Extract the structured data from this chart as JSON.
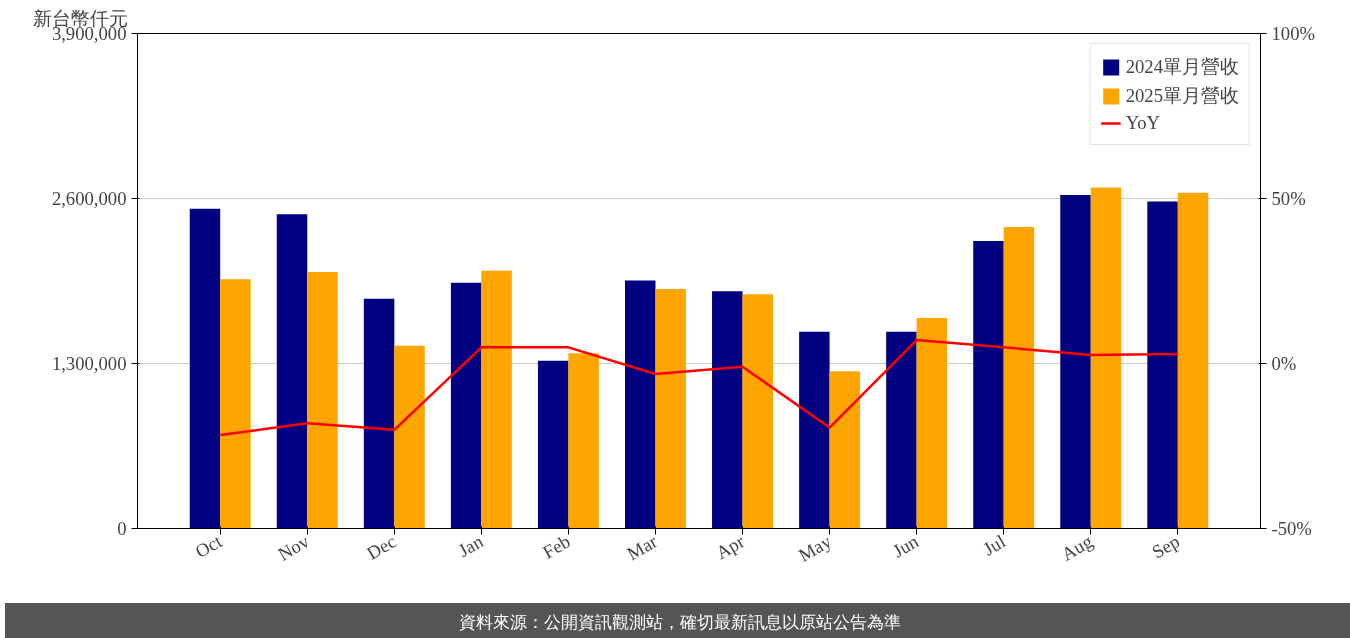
{
  "chart_data": {
    "type": "bar",
    "ylabel": "新台幣仟元",
    "categories": [
      "Oct",
      "Nov",
      "Dec",
      "Jan",
      "Feb",
      "Mar",
      "Apr",
      "May",
      "Jun",
      "Jul",
      "Aug",
      "Sep"
    ],
    "series": [
      {
        "name": "2024單月營收",
        "color": "#000080",
        "values": [
          2520000,
          2476000,
          1811000,
          1937000,
          1322000,
          1954000,
          1870000,
          1550000,
          1550000,
          2266000,
          2628000,
          2577000
        ]
      },
      {
        "name": "2025單月營收",
        "color": "#ffa500",
        "values": [
          1963000,
          2020000,
          1440000,
          2030000,
          1381000,
          1887000,
          1845000,
          1238000,
          1659000,
          2375000,
          2687000,
          2645000
        ]
      },
      {
        "name": "YoY",
        "type": "line",
        "axis": "y2",
        "color": "#ff0000",
        "values": [
          -21.7,
          -18.1,
          -20.1,
          4.9,
          4.9,
          -3.2,
          -1.0,
          -19.4,
          7.1,
          4.9,
          2.6,
          2.9
        ]
      }
    ],
    "ylim": [
      0,
      3900000
    ],
    "yticks": [
      {
        "value": 0,
        "label": "0"
      },
      {
        "value": 1300000,
        "label": "1,300,000"
      },
      {
        "value": 2600000,
        "label": "2,600,000"
      },
      {
        "value": 3900000,
        "label": "3,900,000"
      }
    ],
    "y2lim": [
      -50,
      100
    ],
    "y2ticks": [
      {
        "value": -50,
        "label": "-50%"
      },
      {
        "value": 0,
        "label": "0%"
      },
      {
        "value": 50,
        "label": "50%"
      },
      {
        "value": 100,
        "label": "100%"
      }
    ],
    "grid": "y",
    "legend": "top right",
    "line_style": "solid",
    "marker": "none",
    "annotations": [
      "資料來源：公開資訊觀測站，確切最新訊息以原站公告為準"
    ]
  }
}
